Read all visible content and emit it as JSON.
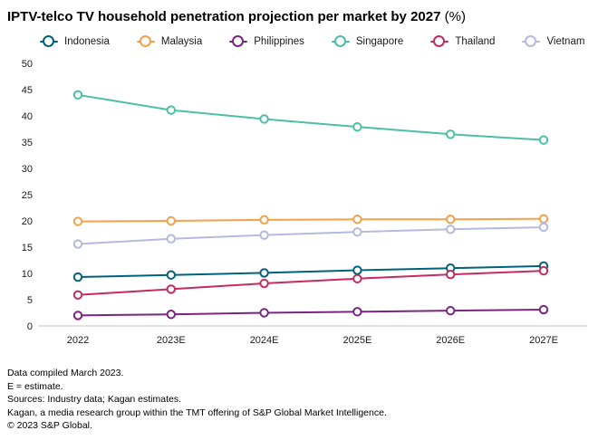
{
  "header": {
    "title": "IPTV-telco TV household penetration projection per market by 2027",
    "unit": " (%)"
  },
  "chart_data": {
    "type": "line",
    "title": "IPTV-telco TV household penetration projection per market by 2027 (%)",
    "categories": [
      "2022",
      "2023E",
      "2024E",
      "2025E",
      "2026E",
      "2027E"
    ],
    "xlabel": "",
    "ylabel": "",
    "ylim": [
      0,
      50
    ],
    "ytick_step": 5,
    "grid": false,
    "legend_position": "top",
    "marker": "open-circle",
    "series": [
      {
        "name": "Indonesia",
        "color": "#00617e",
        "values": [
          9.3,
          9.7,
          10.1,
          10.6,
          11.0,
          11.4
        ]
      },
      {
        "name": "Malaysia",
        "color": "#f5a04a",
        "values": [
          19.9,
          20.0,
          20.2,
          20.3,
          20.3,
          20.4
        ]
      },
      {
        "name": "Philippines",
        "color": "#7b2481",
        "values": [
          2.0,
          2.2,
          2.5,
          2.7,
          2.9,
          3.1
        ]
      },
      {
        "name": "Singapore",
        "color": "#4cbfa7",
        "values": [
          44.0,
          41.1,
          39.4,
          37.9,
          36.5,
          35.4
        ]
      },
      {
        "name": "Thailand",
        "color": "#c62a5e",
        "values": [
          5.9,
          7.0,
          8.1,
          9.0,
          9.8,
          10.5
        ]
      },
      {
        "name": "Vietnam",
        "color": "#b4bade",
        "values": [
          15.6,
          16.6,
          17.3,
          17.9,
          18.4,
          18.8
        ]
      }
    ]
  },
  "footnotes": [
    "Data compiled March 2023.",
    "E = estimate.",
    "Sources: Industry data; Kagan estimates.",
    "Kagan, a media research group within the TMT offering of S&P Global Market Intelligence.",
    "© 2023 S&P Global."
  ]
}
